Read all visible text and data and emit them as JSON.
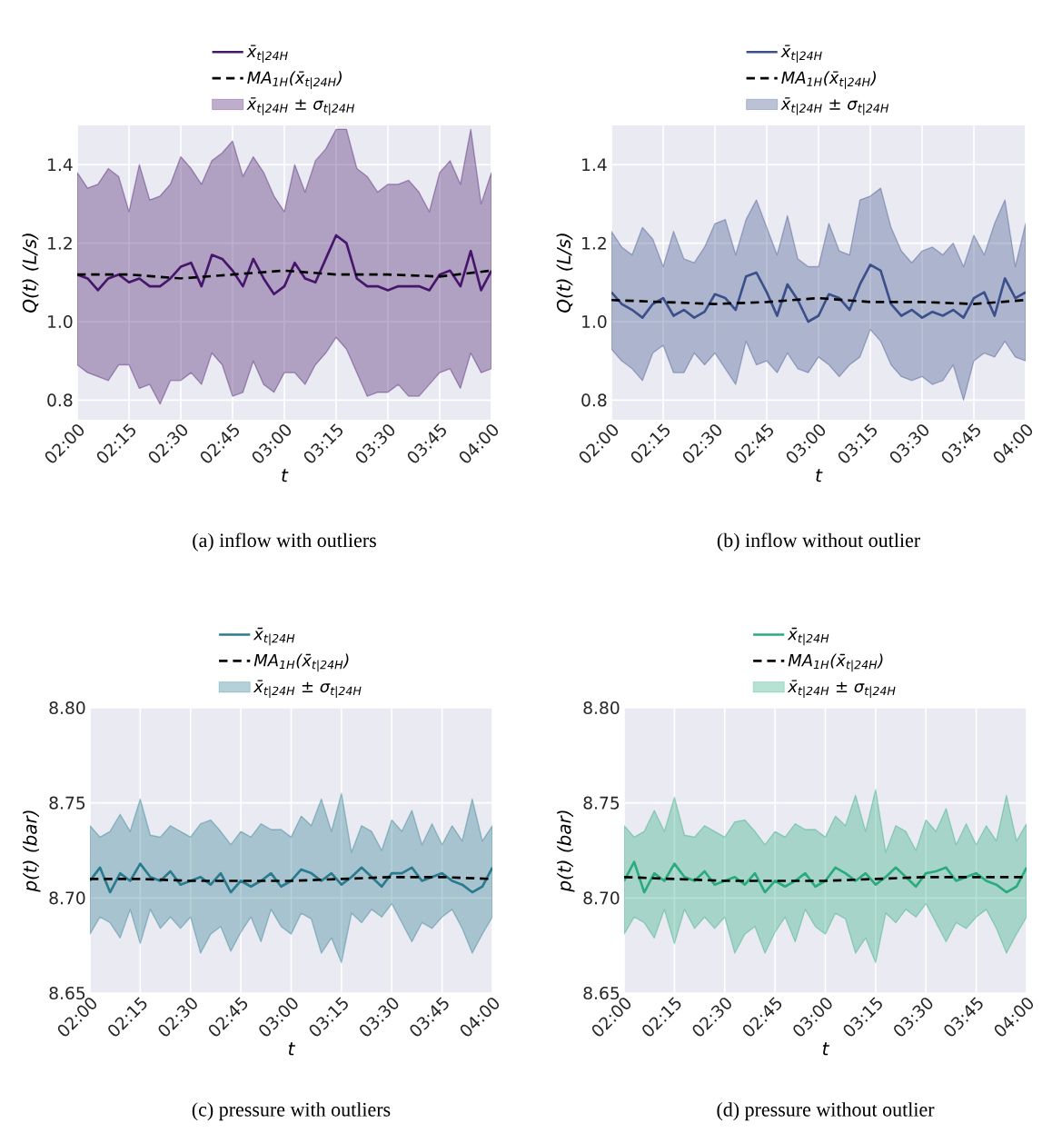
{
  "chart_data": [
    {
      "type": "line",
      "title": "(a) inflow with outliers",
      "xlabel": "t",
      "ylabel": "Q(t) (L/s)",
      "grid": true,
      "legend": "top",
      "xlim": [
        2,
        4
      ],
      "ylim": [
        0.75,
        1.5
      ],
      "annotations": [
        "x̄$_{t|24H}$ ± σ$_{t|24H}$"
      ],
      "xticks": [
        {
          "value": 2,
          "label": "02:00"
        },
        {
          "value": 2.25,
          "label": "02:15"
        },
        {
          "value": 2.5,
          "label": "02:30"
        },
        {
          "value": 2.75,
          "label": "02:45"
        },
        {
          "value": 3,
          "label": "03:00"
        },
        {
          "value": 3.25,
          "label": "03:15"
        },
        {
          "value": 3.5,
          "label": "03:30"
        },
        {
          "value": 3.75,
          "label": "03:45"
        },
        {
          "value": 4,
          "label": "04:00"
        }
      ],
      "yticks": [
        0.8,
        {
          "value": 1,
          "label": "1.0"
        },
        1.2,
        1.4
      ],
      "x": [
        2,
        2.05,
        2.1,
        2.15,
        2.2,
        2.25,
        2.3,
        2.35,
        2.4,
        2.45,
        2.5,
        2.55,
        2.6,
        2.65,
        2.7,
        2.75,
        2.8,
        2.85,
        2.9,
        2.95,
        3,
        3.05,
        3.1,
        3.15,
        3.2,
        3.25,
        3.3,
        3.35,
        3.4,
        3.45,
        3.5,
        3.55,
        3.6,
        3.65,
        3.7,
        3.75,
        3.8,
        3.85,
        3.9,
        3.95,
        4
      ],
      "series": [
        {
          "name": "x̄$_{t|24H}$",
          "color": "#46166b",
          "values": [
            1.12,
            1.11,
            1.08,
            1.11,
            1.12,
            1.1,
            1.11,
            1.09,
            1.09,
            1.11,
            1.14,
            1.15,
            1.09,
            1.17,
            1.16,
            1.13,
            1.09,
            1.16,
            1.11,
            1.07,
            1.09,
            1.15,
            1.11,
            1.1,
            1.16,
            1.22,
            1.2,
            1.11,
            1.09,
            1.09,
            1.08,
            1.09,
            1.09,
            1.09,
            1.08,
            1.12,
            1.13,
            1.09,
            1.18,
            1.08,
            1.13
          ],
          "upper": [
            1.38,
            1.34,
            1.35,
            1.39,
            1.37,
            1.28,
            1.4,
            1.31,
            1.32,
            1.35,
            1.42,
            1.39,
            1.35,
            1.41,
            1.43,
            1.46,
            1.37,
            1.42,
            1.38,
            1.32,
            1.28,
            1.4,
            1.33,
            1.41,
            1.44,
            1.49,
            1.49,
            1.39,
            1.37,
            1.33,
            1.35,
            1.35,
            1.36,
            1.33,
            1.28,
            1.38,
            1.41,
            1.35,
            1.49,
            1.3,
            1.38
          ],
          "lower": [
            0.89,
            0.87,
            0.86,
            0.85,
            0.89,
            0.89,
            0.83,
            0.84,
            0.79,
            0.85,
            0.85,
            0.87,
            0.84,
            0.92,
            0.89,
            0.81,
            0.82,
            0.9,
            0.84,
            0.82,
            0.87,
            0.87,
            0.84,
            0.89,
            0.92,
            0.96,
            0.93,
            0.87,
            0.81,
            0.82,
            0.82,
            0.84,
            0.81,
            0.81,
            0.84,
            0.87,
            0.88,
            0.83,
            0.92,
            0.87,
            0.88
          ]
        },
        {
          "name": "MA$_{1H}$(x̄$_{t|24H}$)",
          "color": "#000000",
          "line_style": "dashed",
          "x": [
            2,
            2.25,
            2.5,
            2.75,
            3,
            3.25,
            3.5,
            3.75,
            4
          ],
          "values": [
            1.12,
            1.12,
            1.11,
            1.12,
            1.13,
            1.12,
            1.12,
            1.115,
            1.13
          ]
        }
      ]
    },
    {
      "type": "line",
      "title": "(b) inflow without outlier",
      "xlabel": "t",
      "ylabel": "Q(t) (L/s)",
      "grid": true,
      "legend": "top",
      "xlim": [
        2,
        4
      ],
      "ylim": [
        0.75,
        1.5
      ],
      "annotations": [
        "x̄$_{t|24H}$ ± σ$_{t|24H}$"
      ],
      "xticks": [
        {
          "value": 2,
          "label": "02:00"
        },
        {
          "value": 2.25,
          "label": "02:15"
        },
        {
          "value": 2.5,
          "label": "02:30"
        },
        {
          "value": 2.75,
          "label": "02:45"
        },
        {
          "value": 3,
          "label": "03:00"
        },
        {
          "value": 3.25,
          "label": "03:15"
        },
        {
          "value": 3.5,
          "label": "03:30"
        },
        {
          "value": 3.75,
          "label": "03:45"
        },
        {
          "value": 4,
          "label": "04:00"
        }
      ],
      "yticks": [
        0.8,
        {
          "value": 1,
          "label": "1.0"
        },
        1.2,
        1.4
      ],
      "x": [
        2,
        2.05,
        2.1,
        2.15,
        2.2,
        2.25,
        2.3,
        2.35,
        2.4,
        2.45,
        2.5,
        2.55,
        2.6,
        2.65,
        2.7,
        2.75,
        2.8,
        2.85,
        2.9,
        2.95,
        3,
        3.05,
        3.1,
        3.15,
        3.2,
        3.25,
        3.3,
        3.35,
        3.4,
        3.45,
        3.5,
        3.55,
        3.6,
        3.65,
        3.7,
        3.75,
        3.8,
        3.85,
        3.9,
        3.95,
        4
      ],
      "series": [
        {
          "name": "x̄$_{t|24H}$",
          "color": "#3b4f8a",
          "values": [
            1.075,
            1.045,
            1.03,
            1.01,
            1.045,
            1.06,
            1.015,
            1.03,
            1.01,
            1.025,
            1.07,
            1.06,
            1.03,
            1.115,
            1.125,
            1.075,
            1.015,
            1.095,
            1.055,
            1.0,
            1.015,
            1.07,
            1.06,
            1.03,
            1.095,
            1.145,
            1.13,
            1.045,
            1.015,
            1.03,
            1.01,
            1.025,
            1.015,
            1.03,
            1.01,
            1.06,
            1.075,
            1.015,
            1.11,
            1.06,
            1.075
          ],
          "upper": [
            1.23,
            1.19,
            1.17,
            1.24,
            1.21,
            1.14,
            1.23,
            1.16,
            1.15,
            1.19,
            1.25,
            1.26,
            1.17,
            1.26,
            1.31,
            1.24,
            1.17,
            1.27,
            1.16,
            1.14,
            1.14,
            1.25,
            1.18,
            1.17,
            1.31,
            1.32,
            1.34,
            1.24,
            1.18,
            1.15,
            1.18,
            1.19,
            1.17,
            1.2,
            1.14,
            1.22,
            1.17,
            1.25,
            1.31,
            1.14,
            1.25
          ],
          "lower": [
            0.93,
            0.9,
            0.88,
            0.85,
            0.92,
            0.94,
            0.87,
            0.87,
            0.92,
            0.89,
            0.92,
            0.88,
            0.84,
            0.95,
            0.89,
            0.9,
            0.87,
            0.92,
            0.88,
            0.87,
            0.91,
            0.89,
            0.86,
            0.89,
            0.91,
            0.98,
            0.95,
            0.89,
            0.86,
            0.85,
            0.86,
            0.84,
            0.85,
            0.89,
            0.8,
            0.9,
            0.92,
            0.91,
            0.95,
            0.91,
            0.9
          ]
        },
        {
          "name": "MA$_{1H}$(x̄$_{t|24H}$)",
          "color": "#000000",
          "line_style": "dashed",
          "x": [
            2,
            2.25,
            2.5,
            2.75,
            3,
            3.25,
            3.5,
            3.75,
            4
          ],
          "values": [
            1.055,
            1.05,
            1.045,
            1.05,
            1.06,
            1.05,
            1.05,
            1.045,
            1.055
          ]
        }
      ]
    },
    {
      "type": "line",
      "title": "(c) pressure with outliers",
      "xlabel": "t",
      "ylabel": "p(t) (bar)",
      "grid": true,
      "legend": "top",
      "xlim": [
        2,
        4
      ],
      "ylim": [
        8.65,
        8.8
      ],
      "annotations": [
        "x̄$_{t|24H}$ ± σ$_{t|24H}$"
      ],
      "xticks": [
        {
          "value": 2,
          "label": "02:00"
        },
        {
          "value": 2.25,
          "label": "02:15"
        },
        {
          "value": 2.5,
          "label": "02:30"
        },
        {
          "value": 2.75,
          "label": "02:45"
        },
        {
          "value": 3,
          "label": "03:00"
        },
        {
          "value": 3.25,
          "label": "03:15"
        },
        {
          "value": 3.5,
          "label": "03:30"
        },
        {
          "value": 3.75,
          "label": "03:45"
        },
        {
          "value": 4,
          "label": "04:00"
        }
      ],
      "yticks": [
        8.65,
        {
          "value": 8.7,
          "label": "8.70"
        },
        8.75,
        {
          "value": 8.8,
          "label": "8.80"
        }
      ],
      "x": [
        2,
        2.05,
        2.1,
        2.15,
        2.2,
        2.25,
        2.3,
        2.35,
        2.4,
        2.45,
        2.5,
        2.55,
        2.6,
        2.65,
        2.7,
        2.75,
        2.8,
        2.85,
        2.9,
        2.95,
        3,
        3.05,
        3.1,
        3.15,
        3.2,
        3.25,
        3.3,
        3.35,
        3.4,
        3.45,
        3.5,
        3.55,
        3.6,
        3.65,
        3.7,
        3.75,
        3.8,
        3.85,
        3.9,
        3.95,
        4
      ],
      "series": [
        {
          "name": "x̄$_{t|24H}$",
          "color": "#2a7b8e",
          "values": [
            8.709,
            8.716,
            8.703,
            8.713,
            8.709,
            8.718,
            8.711,
            8.709,
            8.714,
            8.707,
            8.709,
            8.711,
            8.707,
            8.713,
            8.703,
            8.709,
            8.706,
            8.709,
            8.713,
            8.706,
            8.709,
            8.715,
            8.713,
            8.709,
            8.713,
            8.707,
            8.711,
            8.716,
            8.711,
            8.706,
            8.713,
            8.713,
            8.716,
            8.709,
            8.711,
            8.713,
            8.709,
            8.707,
            8.703,
            8.706,
            8.716
          ],
          "upper": [
            8.738,
            8.732,
            8.735,
            8.744,
            8.735,
            8.752,
            8.733,
            8.732,
            8.738,
            8.735,
            8.732,
            8.739,
            8.741,
            8.735,
            8.728,
            8.735,
            8.732,
            8.739,
            8.736,
            8.736,
            8.732,
            8.743,
            8.738,
            8.752,
            8.735,
            8.755,
            8.724,
            8.738,
            8.735,
            8.725,
            8.741,
            8.735,
            8.746,
            8.728,
            8.739,
            8.728,
            8.738,
            8.73,
            8.752,
            8.73,
            8.738
          ],
          "lower": [
            8.681,
            8.69,
            8.687,
            8.679,
            8.694,
            8.676,
            8.694,
            8.684,
            8.69,
            8.684,
            8.69,
            8.671,
            8.681,
            8.685,
            8.672,
            8.682,
            8.69,
            8.677,
            8.694,
            8.685,
            8.681,
            8.692,
            8.689,
            8.671,
            8.679,
            8.666,
            8.692,
            8.687,
            8.694,
            8.69,
            8.697,
            8.687,
            8.677,
            8.687,
            8.684,
            8.69,
            8.694,
            8.684,
            8.671,
            8.681,
            8.69
          ]
        },
        {
          "name": "MA$_{1H}$(x̄$_{t|24H}$)",
          "color": "#000000",
          "line_style": "dashed",
          "x": [
            2,
            2.25,
            2.5,
            2.75,
            3,
            3.25,
            3.5,
            3.75,
            4
          ],
          "values": [
            8.71,
            8.71,
            8.709,
            8.709,
            8.709,
            8.71,
            8.711,
            8.711,
            8.71
          ]
        }
      ]
    },
    {
      "type": "line",
      "title": "(d) pressure without outlier",
      "xlabel": "t",
      "ylabel": "p(t) (bar)",
      "grid": true,
      "legend": "top",
      "xlim": [
        2,
        4
      ],
      "ylim": [
        8.65,
        8.8
      ],
      "annotations": [
        "x̄$_{t|24H}$ ± σ$_{t|24H}$"
      ],
      "xticks": [
        {
          "value": 2,
          "label": "02:00"
        },
        {
          "value": 2.25,
          "label": "02:15"
        },
        {
          "value": 2.5,
          "label": "02:30"
        },
        {
          "value": 2.75,
          "label": "02:45"
        },
        {
          "value": 3,
          "label": "03:00"
        },
        {
          "value": 3.25,
          "label": "03:15"
        },
        {
          "value": 3.5,
          "label": "03:30"
        },
        {
          "value": 3.75,
          "label": "03:45"
        },
        {
          "value": 4,
          "label": "04:00"
        }
      ],
      "yticks": [
        8.65,
        {
          "value": 8.7,
          "label": "8.70"
        },
        8.75,
        {
          "value": 8.8,
          "label": "8.80"
        }
      ],
      "x": [
        2,
        2.05,
        2.1,
        2.15,
        2.2,
        2.25,
        2.3,
        2.35,
        2.4,
        2.45,
        2.5,
        2.55,
        2.6,
        2.65,
        2.7,
        2.75,
        2.8,
        2.85,
        2.9,
        2.95,
        3,
        3.05,
        3.1,
        3.15,
        3.2,
        3.25,
        3.3,
        3.35,
        3.4,
        3.45,
        3.5,
        3.55,
        3.6,
        3.65,
        3.7,
        3.75,
        3.8,
        3.85,
        3.9,
        3.95,
        4
      ],
      "series": [
        {
          "name": "x̄$_{t|24H}$",
          "color": "#2aab7e",
          "values": [
            8.709,
            8.719,
            8.703,
            8.713,
            8.709,
            8.718,
            8.711,
            8.709,
            8.714,
            8.707,
            8.709,
            8.711,
            8.707,
            8.713,
            8.703,
            8.709,
            8.706,
            8.709,
            8.713,
            8.706,
            8.709,
            8.716,
            8.713,
            8.709,
            8.713,
            8.707,
            8.711,
            8.716,
            8.711,
            8.706,
            8.713,
            8.714,
            8.716,
            8.709,
            8.711,
            8.713,
            8.709,
            8.707,
            8.703,
            8.706,
            8.716
          ],
          "upper": [
            8.738,
            8.732,
            8.735,
            8.746,
            8.735,
            8.753,
            8.733,
            8.732,
            8.738,
            8.735,
            8.732,
            8.74,
            8.741,
            8.735,
            8.728,
            8.735,
            8.732,
            8.739,
            8.736,
            8.736,
            8.732,
            8.743,
            8.738,
            8.754,
            8.735,
            8.757,
            8.724,
            8.738,
            8.735,
            8.725,
            8.741,
            8.735,
            8.747,
            8.728,
            8.739,
            8.728,
            8.738,
            8.73,
            8.754,
            8.73,
            8.739
          ],
          "lower": [
            8.681,
            8.69,
            8.687,
            8.679,
            8.694,
            8.676,
            8.694,
            8.684,
            8.69,
            8.684,
            8.69,
            8.671,
            8.681,
            8.685,
            8.671,
            8.682,
            8.69,
            8.677,
            8.694,
            8.685,
            8.681,
            8.692,
            8.689,
            8.671,
            8.679,
            8.666,
            8.692,
            8.687,
            8.694,
            8.69,
            8.697,
            8.687,
            8.677,
            8.687,
            8.684,
            8.69,
            8.694,
            8.684,
            8.671,
            8.681,
            8.69
          ]
        },
        {
          "name": "MA$_{1H}$(x̄$_{t|24H}$)",
          "color": "#000000",
          "line_style": "dashed",
          "x": [
            2,
            2.25,
            2.5,
            2.75,
            3,
            3.25,
            3.5,
            3.75,
            4
          ],
          "values": [
            8.711,
            8.71,
            8.709,
            8.709,
            8.709,
            8.71,
            8.711,
            8.711,
            8.711
          ]
        }
      ]
    }
  ]
}
